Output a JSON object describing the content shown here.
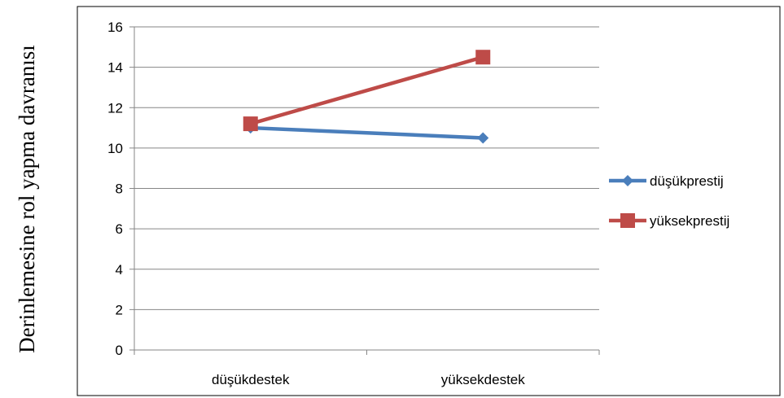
{
  "chart_data": {
    "type": "line",
    "categories": [
      "düşükdestek",
      "yüksekdestek"
    ],
    "series": [
      {
        "name": "düşükprestij",
        "values": [
          11,
          10.5
        ],
        "color": "#4a7ebb",
        "marker": "diamond"
      },
      {
        "name": "yüksekprestij",
        "values": [
          11.2,
          14.5
        ],
        "color": "#be4b48",
        "marker": "square"
      }
    ],
    "ylabel": "Derinlemesine rol yapma davranısı",
    "xlabel": "",
    "ylim": [
      0,
      16
    ],
    "yticks": [
      0,
      2,
      4,
      6,
      8,
      10,
      12,
      14,
      16
    ],
    "grid": true,
    "legend": "right"
  }
}
